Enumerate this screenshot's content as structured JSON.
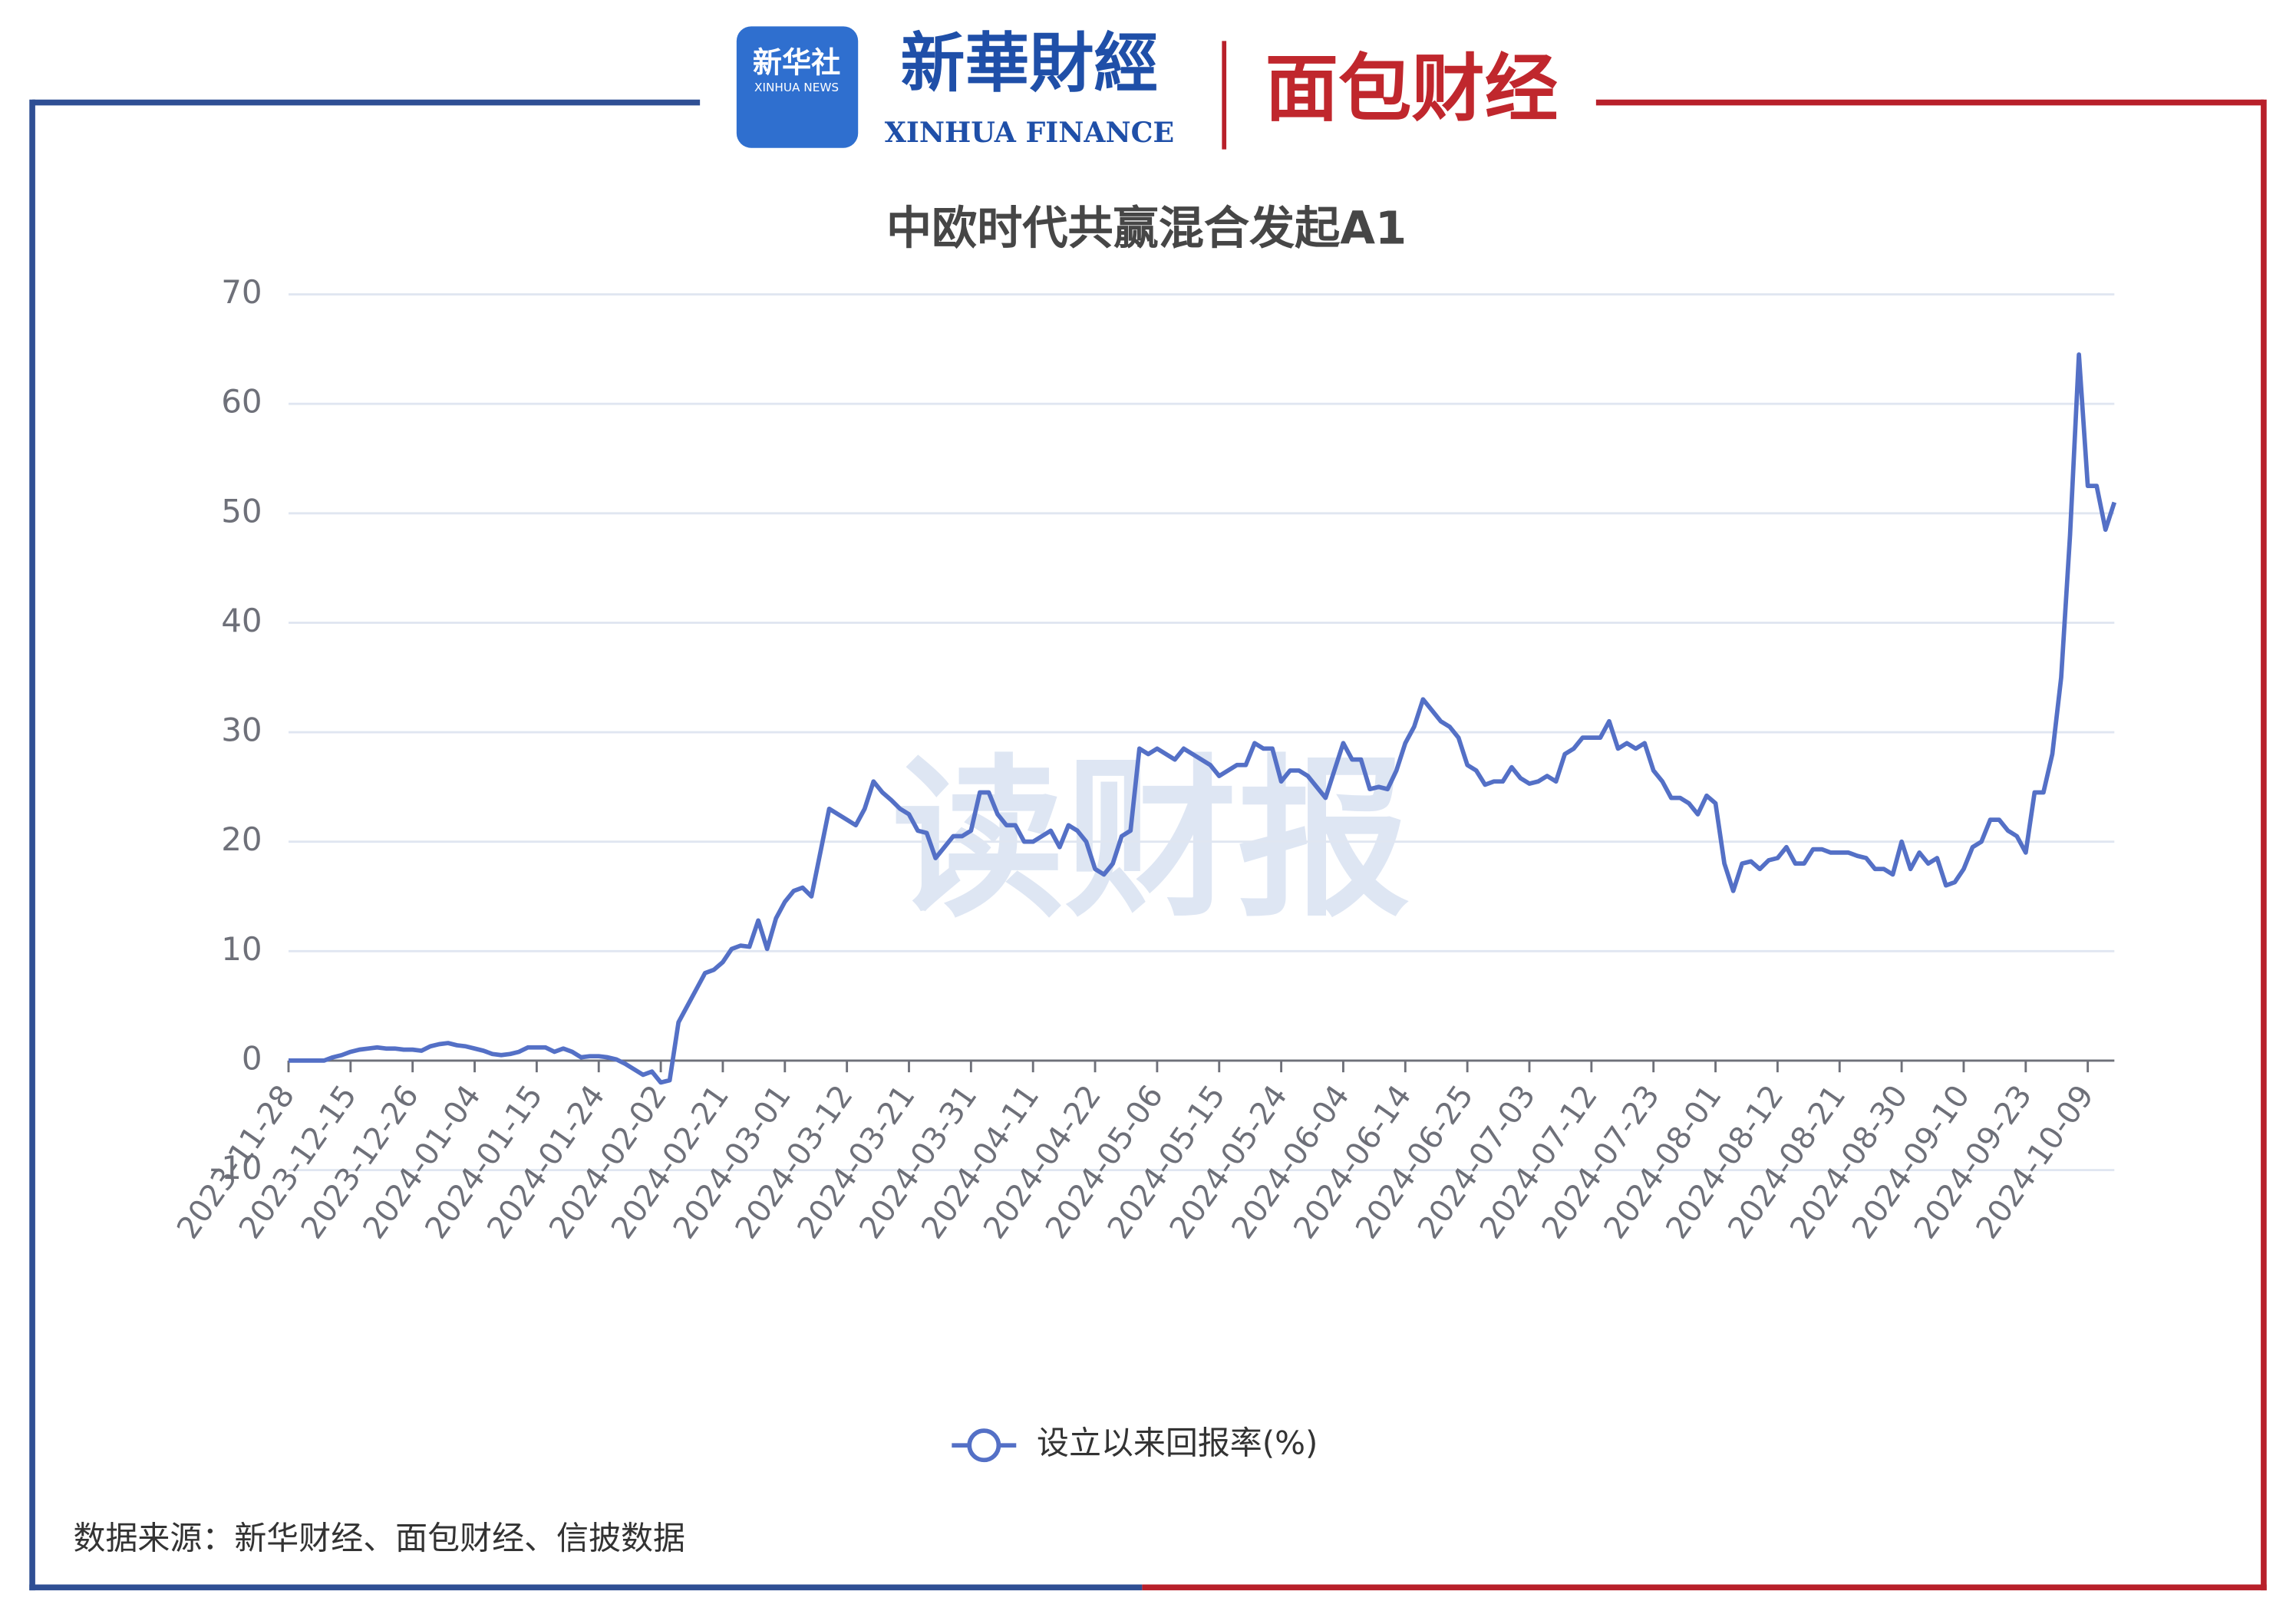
{
  "header": {
    "xinhua_badge": "新华社",
    "xinhua_badge_en": "XINHUA NEWS",
    "finance_logo": "新華財經",
    "finance_logo_en": "XINHUA FINANCE",
    "mianbao_logo": "面包财经"
  },
  "watermark": "读财报",
  "footer": {
    "source": "数据来源：新华财经、面包财经、信披数据"
  },
  "chart_data": {
    "type": "line",
    "title": "中欧时代共赢混合发起A1",
    "categories": [
      "2023-11-28",
      null,
      null,
      null,
      null,
      null,
      null,
      "2023-12-15",
      null,
      null,
      null,
      null,
      null,
      null,
      "2023-12-26",
      null,
      null,
      null,
      null,
      null,
      null,
      "2024-01-04",
      null,
      null,
      null,
      null,
      null,
      null,
      "2024-01-15",
      null,
      null,
      null,
      null,
      null,
      null,
      "2024-01-24",
      null,
      null,
      null,
      null,
      null,
      null,
      "2024-02-02",
      null,
      null,
      null,
      null,
      null,
      null,
      "2024-02-21",
      null,
      null,
      null,
      null,
      null,
      null,
      "2024-03-01",
      null,
      null,
      null,
      null,
      null,
      null,
      "2024-03-12",
      null,
      null,
      null,
      null,
      null,
      null,
      "2024-03-21",
      null,
      null,
      null,
      null,
      null,
      null,
      "2024-03-31",
      null,
      null,
      null,
      null,
      null,
      null,
      "2024-04-11",
      null,
      null,
      null,
      null,
      null,
      null,
      "2024-04-22",
      null,
      null,
      null,
      null,
      null,
      null,
      "2024-05-06",
      null,
      null,
      null,
      null,
      null,
      null,
      "2024-05-15",
      null,
      null,
      null,
      null,
      null,
      null,
      "2024-05-24",
      null,
      null,
      null,
      null,
      null,
      null,
      "2024-06-04",
      null,
      null,
      null,
      null,
      null,
      null,
      "2024-06-14",
      null,
      null,
      null,
      null,
      null,
      null,
      "2024-06-25",
      null,
      null,
      null,
      null,
      null,
      null,
      "2024-07-03",
      null,
      null,
      null,
      null,
      null,
      null,
      "2024-07-12",
      null,
      null,
      null,
      null,
      null,
      null,
      "2024-07-23",
      null,
      null,
      null,
      null,
      null,
      null,
      "2024-08-01",
      null,
      null,
      null,
      null,
      null,
      null,
      "2024-08-12",
      null,
      null,
      null,
      null,
      null,
      null,
      "2024-08-21",
      null,
      null,
      null,
      null,
      null,
      null,
      "2024-08-30",
      null,
      null,
      null,
      null,
      null,
      null,
      "2024-09-10",
      null,
      null,
      null,
      null,
      null,
      null,
      "2024-09-23",
      null,
      null,
      null,
      null,
      null,
      null,
      "2024-10-09",
      null,
      null,
      null
    ],
    "series": [
      {
        "name": "设立以来回报率(%)",
        "color": "#5470c6",
        "values": [
          0,
          0,
          0,
          0,
          0,
          0.3,
          0.5,
          0.8,
          1,
          1.1,
          1.2,
          1.1,
          1.1,
          1,
          1,
          0.9,
          1.3,
          1.5,
          1.6,
          1.4,
          1.3,
          1.1,
          0.9,
          0.6,
          0.5,
          0.6,
          0.8,
          1.2,
          1.2,
          1.2,
          0.8,
          1.1,
          0.8,
          0.3,
          0.4,
          0.4,
          0.3,
          0.1,
          -0.3,
          -0.8,
          -1.3,
          -1,
          -2,
          -1.8,
          3.5,
          5,
          6.5,
          8,
          8.3,
          9,
          10.2,
          10.5,
          10.4,
          12.8,
          10.2,
          13,
          14.5,
          15.5,
          15.8,
          15,
          19,
          23,
          22.5,
          22,
          21.5,
          23,
          25.5,
          24.5,
          23.8,
          23,
          22.5,
          21,
          20.8,
          18.5,
          19.5,
          20.5,
          20.5,
          21,
          24.5,
          24.5,
          22.5,
          21.5,
          21.5,
          20,
          20,
          20.5,
          21,
          19.5,
          21.5,
          21,
          20,
          17.5,
          17,
          18,
          20.5,
          21,
          28.5,
          28,
          28.5,
          28,
          27.5,
          28.5,
          28,
          27.5,
          27,
          26,
          26.5,
          27,
          27,
          29,
          28.5,
          28.5,
          25.5,
          26.5,
          26.5,
          26,
          25,
          24,
          26.5,
          29,
          27.5,
          27.5,
          24.8,
          25,
          24.8,
          26.5,
          29,
          30.5,
          33,
          32,
          31,
          30.5,
          29.5,
          27,
          26.5,
          25.2,
          25.5,
          25.5,
          26.8,
          25.8,
          25.3,
          25.5,
          26,
          25.5,
          28,
          28.5,
          29.5,
          29.5,
          29.5,
          31,
          28.5,
          29,
          28.5,
          29,
          26.5,
          25.5,
          24,
          24,
          23.5,
          22.5,
          24.2,
          23.5,
          18,
          15.5,
          18,
          18.2,
          17.5,
          18.3,
          18.5,
          19.5,
          18,
          18,
          19.3,
          19.3,
          19,
          19,
          19,
          18.7,
          18.5,
          17.5,
          17.5,
          17,
          20,
          17.5,
          19,
          18,
          18.5,
          16,
          16.3,
          17.5,
          19.5,
          20,
          22,
          22,
          21,
          20.5,
          19,
          24.5,
          24.5,
          28,
          35,
          48,
          64.5,
          52.5,
          52.5,
          48.5,
          51
        ]
      }
    ],
    "ylim": [
      -10,
      70
    ],
    "yticks": [
      -10,
      0,
      10,
      20,
      30,
      40,
      50,
      60,
      70
    ],
    "grid": true
  }
}
